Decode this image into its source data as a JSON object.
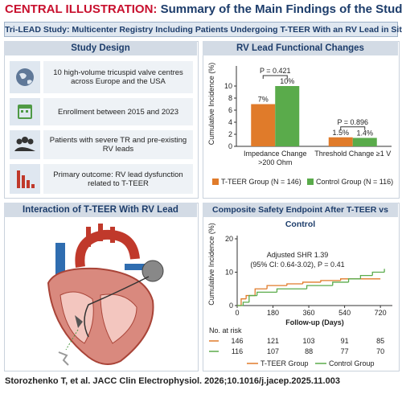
{
  "header": {
    "label": "CENTRAL ILLUSTRATION:",
    "title": "Summary of the Main Findings of the Study"
  },
  "banner": "Tri-LEAD Study: Multicenter Registry Including Patients Undergoing T-TEER With an RV Lead in Situ",
  "study_design": {
    "title": "Study Design",
    "items": [
      "10 high-volume tricuspid valve centres across Europe and the USA",
      "Enrollment between 2015 and 2023",
      "Patients with severe TR and pre-existing RV leads",
      "Primary outcome: RV lead dysfunction related to T-TEER"
    ]
  },
  "interaction": {
    "title": "Interaction of T-TEER With RV Lead"
  },
  "chart_data": [
    {
      "type": "bar",
      "title": "RV Lead Functional Changes",
      "ylabel": "Cumulative Incidence (%)",
      "categories": [
        "Impedance Change >200 Ohm",
        "Threshold Change ≥1 V"
      ],
      "series": [
        {
          "name": "T-TEER Group (N = 146)",
          "color": "#e07b2a",
          "values": [
            7,
            1.5
          ],
          "value_labels": [
            "7%",
            "1.5%"
          ]
        },
        {
          "name": "Control Group (N = 116)",
          "color": "#5aab4b",
          "values": [
            10,
            1.4
          ],
          "value_labels": [
            "10%",
            "1.4%"
          ]
        }
      ],
      "annotations": [
        "P = 0.421",
        "P = 0.896"
      ],
      "ylim": [
        0,
        12
      ],
      "yticks": [
        0,
        2,
        4,
        6,
        8,
        10
      ],
      "grid": false
    },
    {
      "type": "line",
      "step": true,
      "title": "Composite Safety Endpoint After T-TEER vs Control",
      "ylabel": "Cumulative Incidence (%)",
      "xlabel": "Follow-up (Days)",
      "xlim": [
        0,
        780
      ],
      "xticks": [
        0,
        180,
        360,
        540,
        720
      ],
      "ylim": [
        0,
        20
      ],
      "yticks": [
        0,
        10,
        20
      ],
      "series": [
        {
          "name": "T-TEER Group",
          "color": "#e07b2a",
          "x": [
            0,
            20,
            45,
            90,
            150,
            250,
            330,
            420,
            520,
            720
          ],
          "values": [
            0,
            2,
            3,
            5,
            6,
            6.5,
            7,
            7.5,
            8,
            8
          ]
        },
        {
          "name": "Control Group",
          "color": "#5aab4b",
          "x": [
            0,
            30,
            60,
            100,
            200,
            350,
            480,
            560,
            620,
            680,
            740
          ],
          "values": [
            0,
            1,
            3,
            4,
            5,
            6,
            7,
            8,
            9,
            10,
            11
          ]
        }
      ],
      "annotations": [
        "Adjusted SHR 1.39",
        "(95% CI: 0.64-3.02), P = 0.41"
      ],
      "at_risk": {
        "title": "No. at risk",
        "values": [
          [
            146,
            121,
            103,
            91,
            85
          ],
          [
            116,
            107,
            88,
            77,
            70
          ]
        ]
      }
    }
  ],
  "citation": "Storozhenko T, et al. JACC Clin Electrophysiol. 2026;10.1016/j.jacep.2025.11.003"
}
